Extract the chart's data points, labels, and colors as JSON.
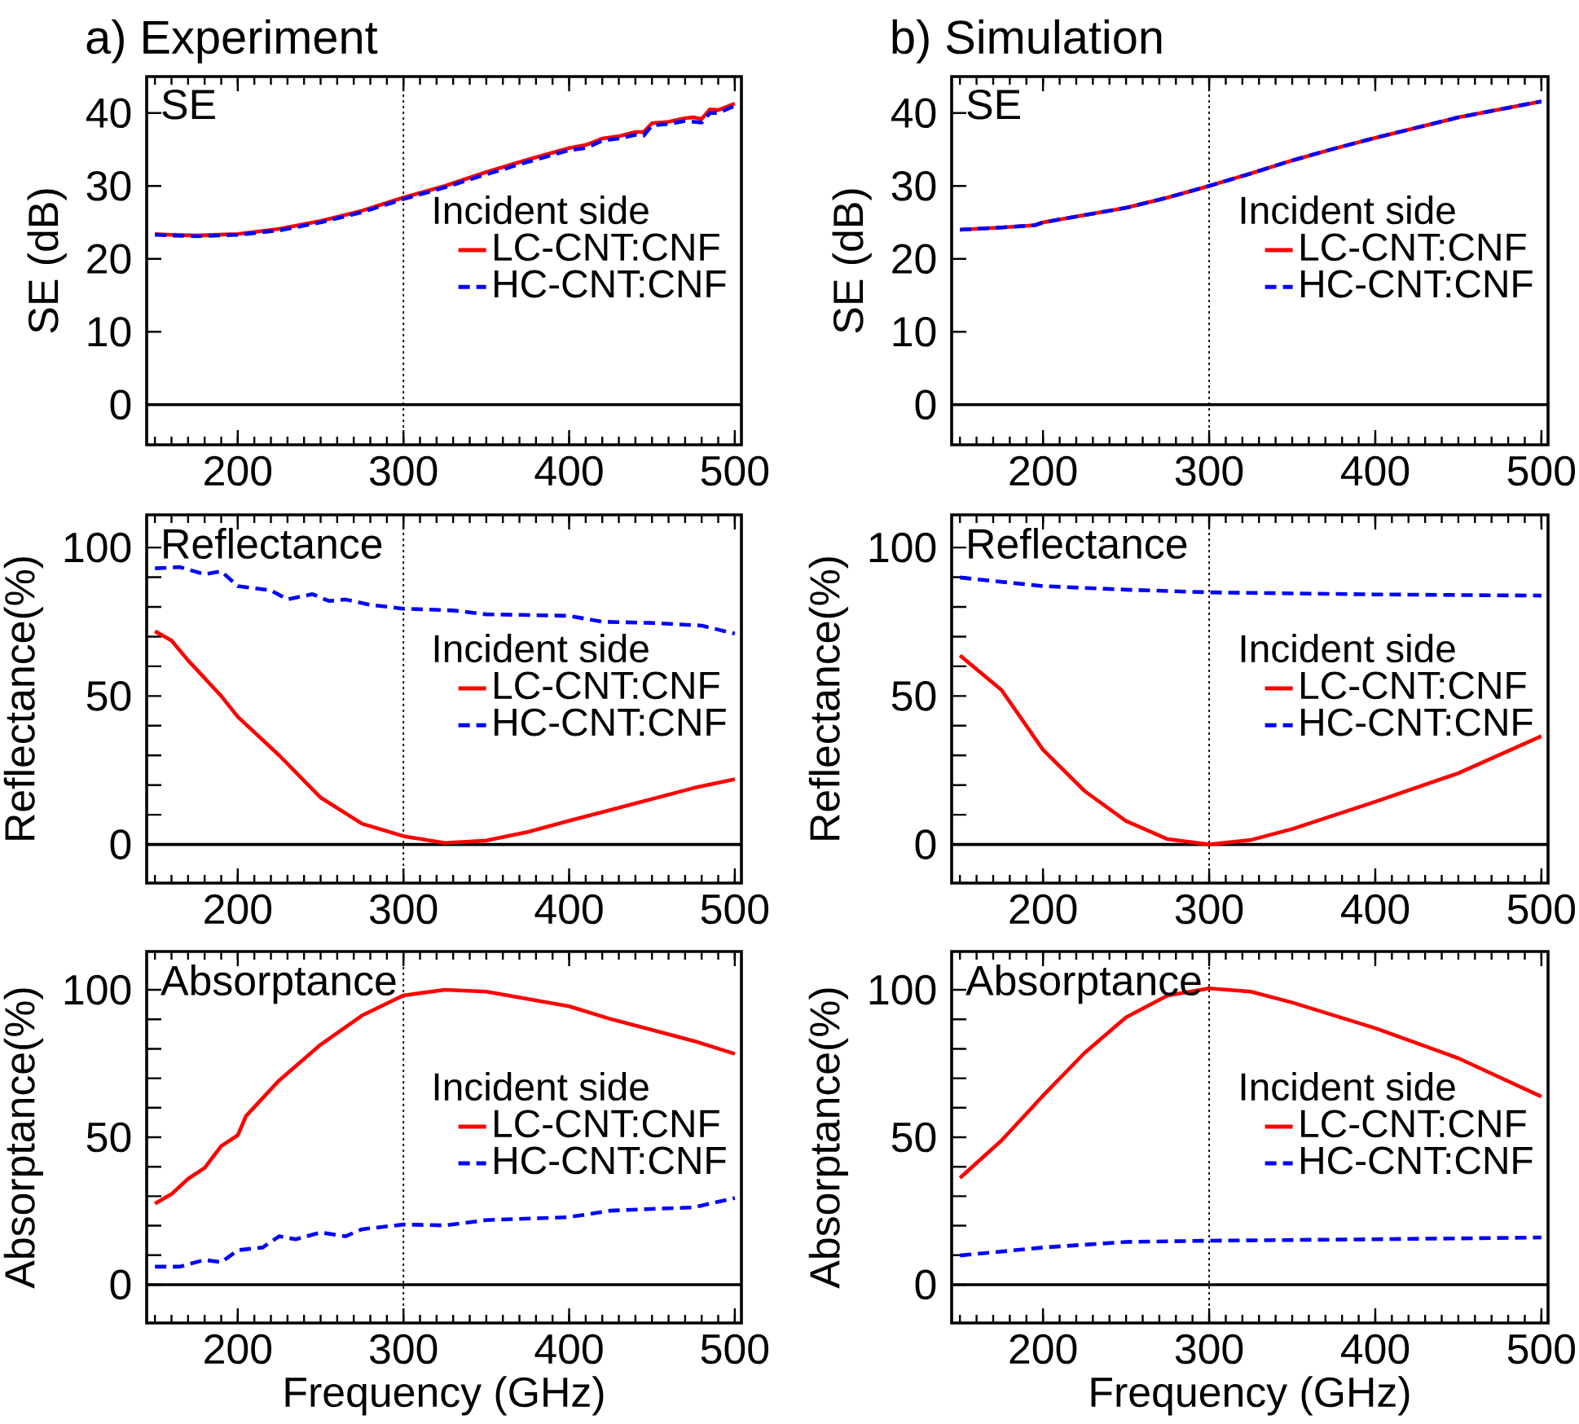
{
  "chart_data": [
    {
      "type": "line",
      "title": "a) Experiment",
      "ylabel": "SE (dB)",
      "annotations": [
        "SE"
      ],
      "legend_title": "Incident side",
      "legend": "right",
      "xlim": [
        145,
        504
      ],
      "xticks": [
        200,
        300,
        400,
        500
      ],
      "ylim": [
        -5.5,
        45
      ],
      "yticks": [
        0,
        10,
        20,
        30,
        40
      ],
      "ref_lines": [
        {
          "axis": "x",
          "value": 300,
          "color": "#000000",
          "line_style": "dotted"
        },
        {
          "axis": "y",
          "value": 0,
          "color": "#000000",
          "line_style": "solid"
        }
      ],
      "series": [
        {
          "name": "LC-CNT:CNF",
          "color": "#ff0000",
          "line_style": "solid",
          "x": [
            150,
            160,
            175,
            200,
            225,
            250,
            275,
            300,
            325,
            350,
            375,
            400,
            410,
            420,
            430,
            440,
            445,
            450,
            460,
            470,
            475,
            480,
            485,
            490,
            500
          ],
          "values": [
            23.4,
            23.3,
            23.2,
            23.4,
            24.1,
            25.2,
            26.6,
            28.4,
            30.0,
            31.9,
            33.6,
            35.2,
            35.6,
            36.5,
            36.8,
            37.4,
            37.4,
            38.6,
            38.8,
            39.3,
            39.4,
            39.2,
            40.5,
            40.4,
            41.3
          ]
        },
        {
          "name": "HC-CNT:CNF",
          "color": "#0000ff",
          "line_style": "dashed",
          "x": [
            150,
            160,
            175,
            200,
            225,
            250,
            275,
            300,
            325,
            350,
            375,
            400,
            410,
            420,
            430,
            440,
            445,
            450,
            460,
            470,
            475,
            480,
            485,
            490,
            500
          ],
          "values": [
            23.3,
            23.2,
            23.1,
            23.3,
            23.9,
            25.0,
            26.4,
            28.2,
            29.8,
            31.6,
            33.3,
            34.9,
            35.2,
            36.2,
            36.5,
            37.0,
            36.9,
            38.3,
            38.5,
            38.9,
            38.8,
            38.7,
            40.0,
            40.0,
            41.0
          ]
        }
      ]
    },
    {
      "type": "line",
      "title": "b) Simulation",
      "ylabel": "SE (dB)",
      "annotations": [
        "SE"
      ],
      "legend_title": "Incident side",
      "legend": "right",
      "xlim": [
        145,
        504
      ],
      "xticks": [
        200,
        300,
        400,
        500
      ],
      "ylim": [
        -5.5,
        45
      ],
      "yticks": [
        0,
        10,
        20,
        30,
        40
      ],
      "ref_lines": [
        {
          "axis": "x",
          "value": 300,
          "color": "#000000",
          "line_style": "dotted"
        },
        {
          "axis": "y",
          "value": 0,
          "color": "#000000",
          "line_style": "solid"
        }
      ],
      "series": [
        {
          "name": "LC-CNT:CNF",
          "color": "#ff0000",
          "line_style": "solid",
          "x": [
            150,
            175,
            195,
            200,
            225,
            250,
            275,
            300,
            325,
            350,
            375,
            400,
            425,
            450,
            475,
            500
          ],
          "values": [
            24.0,
            24.3,
            24.6,
            25.0,
            26.0,
            27.0,
            28.4,
            30.0,
            31.7,
            33.5,
            35.1,
            36.6,
            38.0,
            39.4,
            40.5,
            41.6
          ]
        },
        {
          "name": "HC-CNT:CNF",
          "color": "#0000ff",
          "line_style": "dashed",
          "x": [
            150,
            175,
            195,
            200,
            225,
            250,
            275,
            300,
            325,
            350,
            375,
            400,
            425,
            450,
            475,
            500
          ],
          "values": [
            24.0,
            24.3,
            24.6,
            25.0,
            26.0,
            27.0,
            28.4,
            30.0,
            31.7,
            33.5,
            35.1,
            36.6,
            38.0,
            39.4,
            40.5,
            41.6
          ]
        }
      ]
    },
    {
      "type": "line",
      "ylabel": "Reflectance(%)",
      "annotations": [
        "Reflectance"
      ],
      "legend_title": "Incident side",
      "legend": "right",
      "xlim": [
        145,
        504
      ],
      "xticks": [
        200,
        300,
        400,
        500
      ],
      "ylim": [
        -13,
        111
      ],
      "yticks": [
        0,
        {
          "value": 10,
          "label": null
        },
        {
          "value": 20,
          "label": null
        },
        {
          "value": 30,
          "label": null
        },
        {
          "value": 40,
          "label": null
        },
        50,
        {
          "value": 60,
          "label": null
        },
        {
          "value": 70,
          "label": null
        },
        {
          "value": 80,
          "label": null
        },
        {
          "value": 90,
          "label": null
        },
        100
      ],
      "ref_lines": [
        {
          "axis": "x",
          "value": 300,
          "color": "#000000",
          "line_style": "dotted"
        },
        {
          "axis": "y",
          "value": 0,
          "color": "#000000",
          "line_style": "solid"
        }
      ],
      "series": [
        {
          "name": "LC-CNT:CNF",
          "color": "#ff0000",
          "line_style": "solid",
          "x": [
            150,
            160,
            170,
            190,
            200,
            225,
            250,
            275,
            300,
            325,
            350,
            375,
            400,
            425,
            450,
            475,
            500
          ],
          "values": [
            71.8,
            68.7,
            62,
            50,
            43,
            30,
            15.8,
            7,
            2.8,
            0.5,
            1.3,
            4.2,
            8,
            11.6,
            15.3,
            19,
            22
          ]
        },
        {
          "name": "HC-CNT:CNF",
          "color": "#0000ff",
          "line_style": "dashed",
          "x": [
            150,
            165,
            180,
            190,
            200,
            220,
            230,
            245,
            255,
            265,
            280,
            300,
            330,
            350,
            400,
            420,
            450,
            480,
            500
          ],
          "values": [
            93,
            93.4,
            91,
            92,
            87,
            85.6,
            82.5,
            84.3,
            82,
            82.5,
            80.7,
            79.4,
            78.8,
            77.5,
            77,
            75,
            74.6,
            73.7,
            71
          ]
        }
      ]
    },
    {
      "type": "line",
      "ylabel": "Reflectance(%)",
      "annotations": [
        "Reflectance"
      ],
      "legend_title": "Incident side",
      "legend": "right",
      "xlim": [
        145,
        504
      ],
      "xticks": [
        200,
        300,
        400,
        500
      ],
      "ylim": [
        -13,
        111
      ],
      "yticks": [
        0,
        {
          "value": 10,
          "label": null
        },
        {
          "value": 20,
          "label": null
        },
        {
          "value": 30,
          "label": null
        },
        {
          "value": 40,
          "label": null
        },
        50,
        {
          "value": 60,
          "label": null
        },
        {
          "value": 70,
          "label": null
        },
        {
          "value": 80,
          "label": null
        },
        {
          "value": 90,
          "label": null
        },
        100
      ],
      "ref_lines": [
        {
          "axis": "x",
          "value": 300,
          "color": "#000000",
          "line_style": "dotted"
        },
        {
          "axis": "y",
          "value": 0,
          "color": "#000000",
          "line_style": "solid"
        }
      ],
      "series": [
        {
          "name": "LC-CNT:CNF",
          "color": "#ff0000",
          "line_style": "solid",
          "x": [
            150,
            175,
            200,
            225,
            250,
            275,
            300,
            325,
            350,
            400,
            450,
            500
          ],
          "values": [
            63.7,
            52,
            31.9,
            18,
            7.9,
            1.8,
            0,
            1.5,
            5.2,
            14.4,
            24,
            36.5
          ]
        },
        {
          "name": "HC-CNT:CNF",
          "color": "#0000ff",
          "line_style": "dashed",
          "x": [
            150,
            200,
            250,
            300,
            400,
            500
          ],
          "values": [
            89.9,
            87,
            85.8,
            84.9,
            84.2,
            83.8
          ]
        }
      ]
    },
    {
      "type": "line",
      "xlabel": "Frequency (GHz)",
      "ylabel": "Absorptance(%)",
      "annotations": [
        "Absorptance"
      ],
      "legend_title": "Incident side",
      "legend": "right",
      "xlim": [
        145,
        504
      ],
      "xticks": [
        200,
        300,
        400,
        500
      ],
      "ylim": [
        -13,
        113
      ],
      "yticks": [
        0,
        {
          "value": 10,
          "label": null
        },
        {
          "value": 20,
          "label": null
        },
        {
          "value": 30,
          "label": null
        },
        {
          "value": 40,
          "label": null
        },
        50,
        {
          "value": 60,
          "label": null
        },
        {
          "value": 70,
          "label": null
        },
        {
          "value": 80,
          "label": null
        },
        {
          "value": 90,
          "label": null
        },
        100
      ],
      "ref_lines": [
        {
          "axis": "x",
          "value": 300,
          "color": "#000000",
          "line_style": "dotted"
        },
        {
          "axis": "y",
          "value": 0,
          "color": "#000000",
          "line_style": "solid"
        }
      ],
      "series": [
        {
          "name": "LC-CNT:CNF",
          "color": "#ff0000",
          "line_style": "solid",
          "x": [
            150,
            160,
            170,
            180,
            190,
            200,
            205,
            225,
            250,
            275,
            300,
            325,
            350,
            400,
            425,
            450,
            475,
            500
          ],
          "values": [
            27.5,
            30.7,
            35.9,
            39.6,
            47,
            50.7,
            57.2,
            69.3,
            81.4,
            91.3,
            98.1,
            100,
            99.4,
            94.4,
            90.1,
            86.4,
            82.7,
            78.3
          ]
        },
        {
          "name": "HC-CNT:CNF",
          "color": "#0000ff",
          "line_style": "dashed",
          "x": [
            150,
            165,
            180,
            190,
            200,
            215,
            225,
            235,
            250,
            265,
            275,
            300,
            325,
            350,
            400,
            425,
            450,
            475,
            500
          ],
          "values": [
            6.1,
            6.1,
            8.4,
            7.6,
            11.7,
            12.6,
            16.4,
            15.4,
            17.7,
            16.4,
            18.8,
            20.4,
            20.1,
            21.9,
            22.9,
            25.1,
            25.7,
            26.2,
            29.4
          ]
        }
      ]
    },
    {
      "type": "line",
      "xlabel": "Frequency (GHz)",
      "ylabel": "Absorptance(%)",
      "annotations": [
        "Absorptance"
      ],
      "legend_title": "Incident side",
      "legend": "right",
      "xlim": [
        145,
        504
      ],
      "xticks": [
        200,
        300,
        400,
        500
      ],
      "ylim": [
        -13,
        113
      ],
      "yticks": [
        0,
        {
          "value": 10,
          "label": null
        },
        {
          "value": 20,
          "label": null
        },
        {
          "value": 30,
          "label": null
        },
        {
          "value": 40,
          "label": null
        },
        50,
        {
          "value": 60,
          "label": null
        },
        {
          "value": 70,
          "label": null
        },
        {
          "value": 80,
          "label": null
        },
        {
          "value": 90,
          "label": null
        },
        100
      ],
      "ref_lines": [
        {
          "axis": "x",
          "value": 300,
          "color": "#000000",
          "line_style": "dotted"
        },
        {
          "axis": "y",
          "value": 0,
          "color": "#000000",
          "line_style": "solid"
        }
      ],
      "series": [
        {
          "name": "LC-CNT:CNF",
          "color": "#ff0000",
          "line_style": "solid",
          "x": [
            150,
            175,
            200,
            225,
            250,
            275,
            300,
            325,
            350,
            400,
            450,
            500
          ],
          "values": [
            36.2,
            48.9,
            64.1,
            78.6,
            90.7,
            98.1,
            100.5,
            99.4,
            95.7,
            87,
            76.8,
            63.8
          ]
        },
        {
          "name": "HC-CNT:CNF",
          "color": "#0000ff",
          "line_style": "dashed",
          "x": [
            150,
            200,
            250,
            300,
            400,
            500
          ],
          "values": [
            9.9,
            12.6,
            14.5,
            14.9,
            15.4,
            16
          ]
        }
      ]
    }
  ]
}
